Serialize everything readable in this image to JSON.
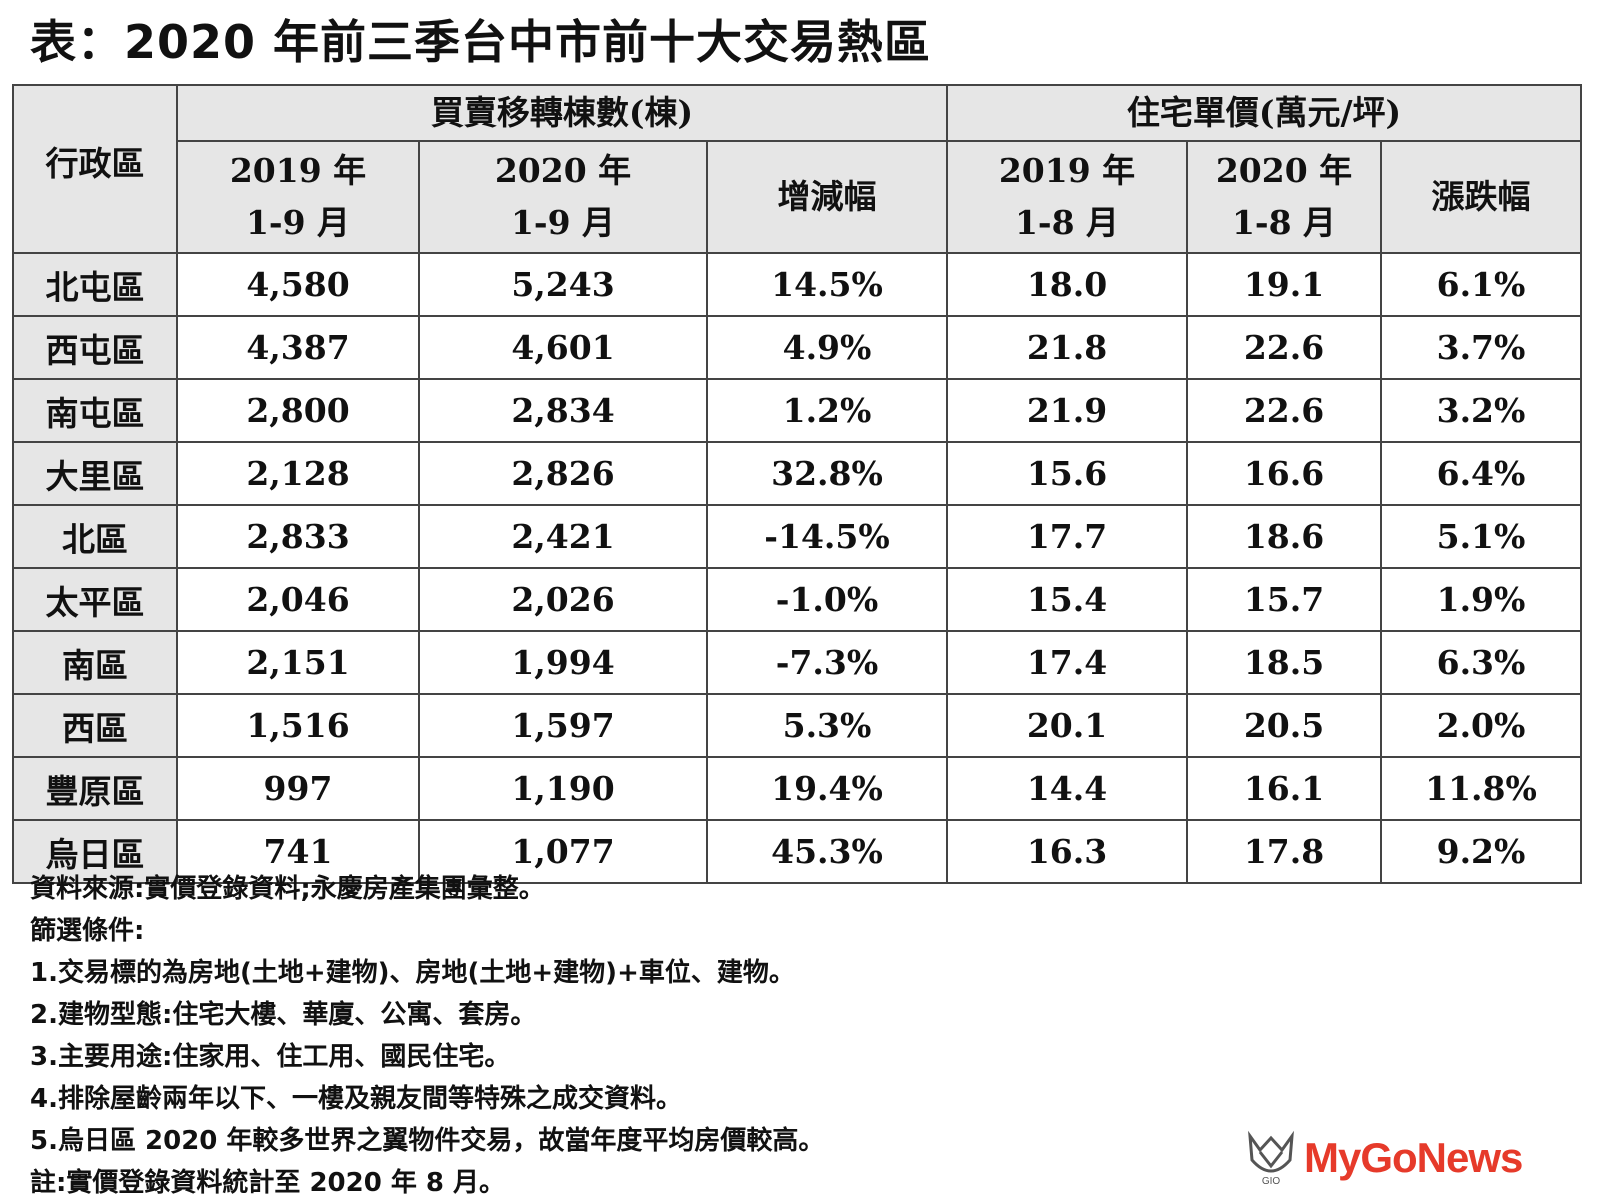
{
  "title": "表：2020 年前三季台中市前十大交易熱區",
  "table": {
    "district_header": "行政區",
    "group_headers": [
      "買賣移轉棟數(棟)",
      "住宅單價(萬元/坪)"
    ],
    "sub_headers": [
      [
        "2019 年",
        "1-9 月"
      ],
      [
        "2020 年",
        "1-9 月"
      ],
      [
        "增減幅"
      ],
      [
        "2019 年",
        "1-8 月"
      ],
      [
        "2020 年",
        "1-8 月"
      ],
      [
        "漲跌幅"
      ]
    ],
    "rows": [
      [
        "北屯區",
        "4,580",
        "5,243",
        "14.5%",
        "18.0",
        "19.1",
        "6.1%"
      ],
      [
        "西屯區",
        "4,387",
        "4,601",
        "4.9%",
        "21.8",
        "22.6",
        "3.7%"
      ],
      [
        "南屯區",
        "2,800",
        "2,834",
        "1.2%",
        "21.9",
        "22.6",
        "3.2%"
      ],
      [
        "大里區",
        "2,128",
        "2,826",
        "32.8%",
        "15.6",
        "16.6",
        "6.4%"
      ],
      [
        "北區",
        "2,833",
        "2,421",
        "-14.5%",
        "17.7",
        "18.6",
        "5.1%"
      ],
      [
        "太平區",
        "2,046",
        "2,026",
        "-1.0%",
        "15.4",
        "15.7",
        "1.9%"
      ],
      [
        "南區",
        "2,151",
        "1,994",
        "-7.3%",
        "17.4",
        "18.5",
        "6.3%"
      ],
      [
        "西區",
        "1,516",
        "1,597",
        "5.3%",
        "20.1",
        "20.5",
        "2.0%"
      ],
      [
        "豐原區",
        "997",
        "1,190",
        "19.4%",
        "14.4",
        "16.1",
        "11.8%"
      ],
      [
        "烏日區",
        "741",
        "1,077",
        "45.3%",
        "16.3",
        "17.8",
        "9.2%"
      ]
    ]
  },
  "notes": [
    "資料來源:實價登錄資料;永慶房產集團彙整。",
    "篩選條件:",
    "1.交易標的為房地(土地+建物)、房地(土地+建物)+車位、建物。",
    "2.建物型態:住宅大樓、華廈、公寓、套房。",
    "3.主要用途:住家用、住工用、國民住宅。",
    "4.排除屋齡兩年以下、一樓及親友間等特殊之成交資料。",
    "5.烏日區 2020 年較多世界之翼物件交易，故當年度平均房價較高。",
    "註:實價登錄資料統計至 2020 年 8 月。"
  ],
  "logo": {
    "text": "MyGoNews",
    "mark_text": "GIO",
    "color": "#e63a2a",
    "icon": "mygonews-logo-icon"
  }
}
